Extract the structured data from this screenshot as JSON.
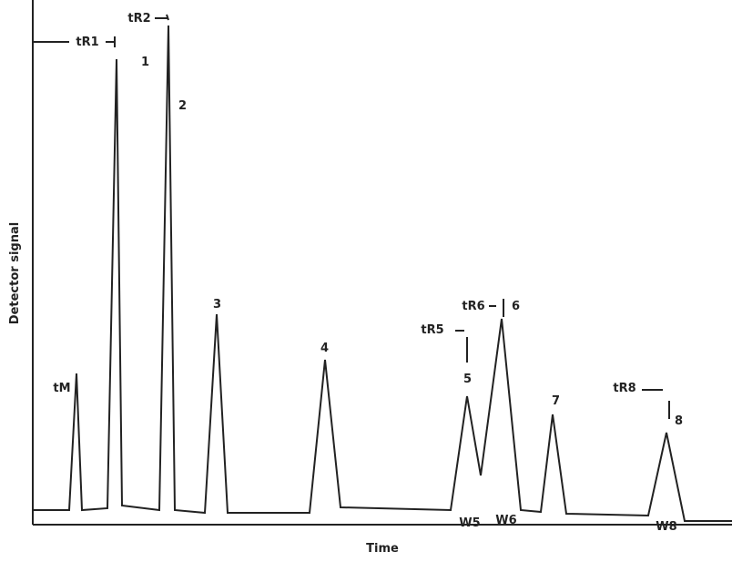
{
  "axes": {
    "y_label": "Detector signal",
    "x_label": "Time"
  },
  "peaks": [
    "1",
    "2",
    "3",
    "4",
    "5",
    "6",
    "7",
    "8"
  ],
  "retention": {
    "tM": "tM",
    "tR1": "tR1",
    "tR2": "tR2",
    "tR5": "tR5",
    "tR6": "tR6",
    "tR8": "tR8"
  },
  "widths": [
    "W5",
    "W6",
    "W8"
  ]
}
